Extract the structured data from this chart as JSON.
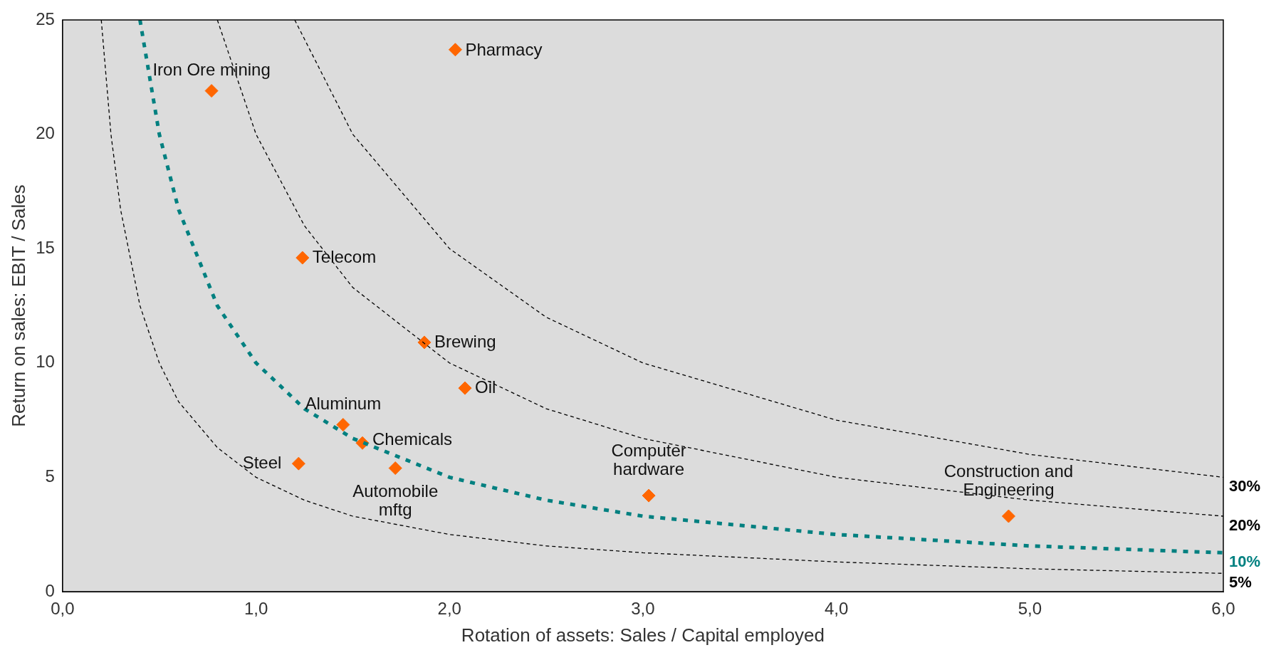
{
  "chart_data": {
    "type": "scatter",
    "xlabel": "Rotation of assets: Sales / Capital employed",
    "ylabel": "Return on sales: EBIT / Sales",
    "xlim": [
      0,
      6
    ],
    "xticks": [
      {
        "value": 0,
        "label": "0,0"
      },
      {
        "value": 1,
        "label": "1,0"
      },
      {
        "value": 2,
        "label": "2,0"
      },
      {
        "value": 3,
        "label": "3,0"
      },
      {
        "value": 4,
        "label": "4,0"
      },
      {
        "value": 5,
        "label": "5,0"
      },
      {
        "value": 6,
        "label": "6,0"
      }
    ],
    "ylim": [
      0,
      25
    ],
    "yticks": [
      0,
      5,
      10,
      15,
      20,
      25
    ],
    "grid": false,
    "legend": false,
    "series": [
      {
        "name": "30%",
        "type": "line",
        "line_style": "dashed",
        "marker": "none",
        "color": "#000000",
        "x": [
          1.2,
          1.5,
          2,
          2.5,
          3,
          4,
          5,
          6
        ],
        "values": [
          25,
          20,
          15,
          12,
          10,
          7.5,
          6,
          5
        ]
      },
      {
        "name": "20%",
        "type": "line",
        "line_style": "dashed",
        "marker": "none",
        "color": "#000000",
        "x": [
          0.8,
          1,
          1.25,
          1.5,
          2,
          2.5,
          3,
          4,
          5,
          6
        ],
        "values": [
          25,
          20,
          16,
          13.3,
          10,
          8,
          6.7,
          5,
          4,
          3.3
        ]
      },
      {
        "name": "10%",
        "type": "line",
        "line_style": "dotted",
        "marker": "none",
        "color": "#008080",
        "x": [
          0.4,
          0.5,
          0.6,
          0.8,
          1,
          1.25,
          1.5,
          2,
          2.5,
          3,
          4,
          5,
          6
        ],
        "values": [
          25,
          20,
          16.7,
          12.5,
          10,
          8,
          6.7,
          5,
          4,
          3.3,
          2.5,
          2,
          1.7
        ]
      },
      {
        "name": "5%",
        "type": "line",
        "line_style": "dashed",
        "marker": "none",
        "color": "#000000",
        "x": [
          0.2,
          0.25,
          0.3,
          0.4,
          0.5,
          0.6,
          0.8,
          1,
          1.25,
          1.5,
          2,
          2.5,
          3,
          4,
          5,
          6
        ],
        "values": [
          25,
          20,
          16.7,
          12.5,
          10,
          8.3,
          6.3,
          5,
          4,
          3.3,
          2.5,
          2,
          1.7,
          1.3,
          1,
          0.8
        ]
      },
      {
        "marker": "diamond",
        "color": "#ff6600",
        "x": [
          0.77,
          2.03,
          1.24,
          1.87,
          2.08,
          1.45,
          1.55,
          1.22,
          1.72,
          3.03,
          4.89
        ],
        "values": [
          21.9,
          23.7,
          14.6,
          10.9,
          8.9,
          7.3,
          6.5,
          5.6,
          5.4,
          4.2,
          3.3
        ]
      }
    ],
    "annotations": [
      {
        "text": "Iron Ore mining",
        "x": 0.77,
        "y": 21.9
      },
      {
        "text": "Pharmacy",
        "x": 2.03,
        "y": 23.7
      },
      {
        "text": "Telecom",
        "x": 1.24,
        "y": 14.6
      },
      {
        "text": "Brewing",
        "x": 1.87,
        "y": 10.9
      },
      {
        "text": "Oil",
        "x": 2.08,
        "y": 8.9
      },
      {
        "text": "Aluminum",
        "x": 1.45,
        "y": 7.3
      },
      {
        "text": "Chemicals",
        "x": 1.55,
        "y": 6.5
      },
      {
        "text": "Steel",
        "x": 1.22,
        "y": 5.6
      },
      {
        "text": "Automobile\nmftg",
        "x": 1.72,
        "y": 5.4
      },
      {
        "text": "Computer\nhardware",
        "x": 3.03,
        "y": 4.2
      },
      {
        "text": "Construction and\nEngineering",
        "x": 4.89,
        "y": 3.3
      }
    ]
  }
}
